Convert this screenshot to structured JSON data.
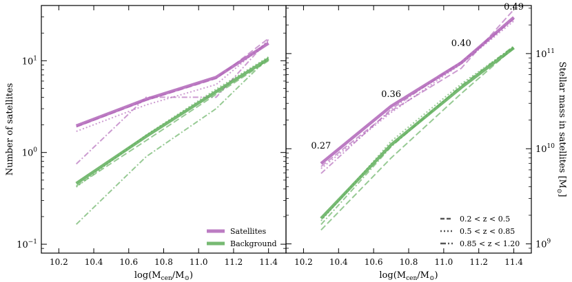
{
  "chart_data": [
    {
      "type": "line",
      "panel": "left",
      "xlabel": "log(M_cen/M_⊙)",
      "ylabel": "Number of satellites",
      "yscale": "log",
      "xlim": [
        10.1,
        11.5
      ],
      "ylim": [
        0.08,
        40
      ],
      "xticks": [
        10.2,
        10.4,
        10.6,
        10.8,
        11.0,
        11.2,
        11.4
      ],
      "yticks": [
        {
          "value": 0.1,
          "base": "10",
          "exp": "−1"
        },
        {
          "value": 1,
          "base": "10",
          "exp": "0"
        },
        {
          "value": 10,
          "base": "10",
          "exp": "1"
        }
      ],
      "legend": {
        "position": "lower-right",
        "entries": [
          {
            "label": "Satellites",
            "color": "#b065b8"
          },
          {
            "label": "Background",
            "color": "#5fae5a"
          }
        ]
      },
      "series": [
        {
          "name": "Satellites",
          "color": "#b065b8",
          "style": "solid",
          "x": [
            10.3,
            10.7,
            11.1,
            11.4
          ],
          "y": [
            1.95,
            3.8,
            6.6,
            15.5
          ]
        },
        {
          "name": "Satellites 0.2<z<0.5",
          "color": "#b065b8",
          "style": "dashed",
          "x": [
            10.3,
            10.7,
            11.1,
            11.4
          ],
          "y": [
            1.9,
            3.7,
            6.4,
            17.5
          ]
        },
        {
          "name": "Satellites 0.5<z<0.85",
          "color": "#b065b8",
          "style": "dotted",
          "x": [
            10.3,
            10.7,
            11.1,
            11.4
          ],
          "y": [
            1.7,
            3.3,
            5.5,
            16.5
          ]
        },
        {
          "name": "Satellites 0.85<z<1.20",
          "color": "#b065b8",
          "style": "dashdot",
          "x": [
            10.3,
            10.7,
            11.1,
            11.4
          ],
          "y": [
            0.75,
            4.0,
            4.0,
            17.0
          ]
        },
        {
          "name": "Background",
          "color": "#5fae5a",
          "style": "solid",
          "x": [
            10.3,
            10.7,
            11.1,
            11.4
          ],
          "y": [
            0.46,
            1.5,
            4.6,
            10.5
          ]
        },
        {
          "name": "Background 0.2<z<0.5",
          "color": "#5fae5a",
          "style": "dashed",
          "x": [
            10.3,
            10.7,
            11.1,
            11.4
          ],
          "y": [
            0.43,
            1.35,
            4.3,
            10.0
          ]
        },
        {
          "name": "Background 0.5<z<0.85",
          "color": "#5fae5a",
          "style": "dotted",
          "x": [
            10.3,
            10.7,
            11.1,
            11.4
          ],
          "y": [
            0.42,
            1.55,
            4.9,
            11.0
          ]
        },
        {
          "name": "Background 0.85<z<1.20",
          "color": "#5fae5a",
          "style": "dashdot",
          "x": [
            10.3,
            10.7,
            11.1,
            11.4
          ],
          "y": [
            0.165,
            0.9,
            3.0,
            10.8
          ]
        }
      ]
    },
    {
      "type": "line",
      "panel": "right",
      "xlabel": "log(M_cen/M_⊙)",
      "ylabel": "Stellar mass in satellites [M_⊙]",
      "yscale": "log",
      "ylabel_side": "right",
      "xlim": [
        10.1,
        11.5
      ],
      "ylim": [
        800000000,
        320000000000
      ],
      "xticks": [
        10.2,
        10.4,
        10.6,
        10.8,
        11.0,
        11.2,
        11.4
      ],
      "yticks": [
        {
          "value": 1000000000,
          "base": "10",
          "exp": "9"
        },
        {
          "value": 10000000000,
          "base": "10",
          "exp": "10"
        },
        {
          "value": 100000000000,
          "base": "10",
          "exp": "11"
        }
      ],
      "legend": {
        "position": "lower-right",
        "entries": [
          {
            "label": "0.2 < z < 0.5",
            "style": "dashed"
          },
          {
            "label": "0.5 < z < 0.85",
            "style": "dotted"
          },
          {
            "label": "0.85 < z < 1.20",
            "style": "dashdot"
          }
        ]
      },
      "annotations": [
        {
          "text": "0.27",
          "x": 10.3,
          "y": 10000000000
        },
        {
          "text": "0.36",
          "x": 10.7,
          "y": 35000000000
        },
        {
          "text": "0.40",
          "x": 11.1,
          "y": 120000000000
        },
        {
          "text": "0.49",
          "x": 11.4,
          "y": 290000000000
        }
      ],
      "series": [
        {
          "name": "Satellites",
          "color": "#b065b8",
          "style": "solid",
          "x": [
            10.3,
            10.7,
            11.1,
            11.4
          ],
          "y": [
            7000000000,
            28000000000,
            80000000000,
            240000000000
          ]
        },
        {
          "name": "Satellites 0.2<z<0.5",
          "color": "#b065b8",
          "style": "dashed",
          "x": [
            10.3,
            10.7,
            11.1,
            11.4
          ],
          "y": [
            6500000000,
            25000000000,
            70000000000,
            290000000000
          ]
        },
        {
          "name": "Satellites 0.5<z<0.85",
          "color": "#b065b8",
          "style": "dotted",
          "x": [
            10.3,
            10.7,
            11.1,
            11.4
          ],
          "y": [
            6200000000,
            24000000000,
            78000000000,
            220000000000
          ]
        },
        {
          "name": "Satellites 0.85<z<1.20",
          "color": "#b065b8",
          "style": "dashdot",
          "x": [
            10.3,
            10.7,
            11.1,
            11.4
          ],
          "y": [
            5500000000,
            26000000000,
            82000000000,
            230000000000
          ]
        },
        {
          "name": "Background",
          "color": "#5fae5a",
          "style": "solid",
          "x": [
            10.3,
            10.7,
            11.1,
            11.4
          ],
          "y": [
            1850000000,
            11000000000,
            44000000000,
            115000000000
          ]
        },
        {
          "name": "Background 0.2<z<0.5",
          "color": "#5fae5a",
          "style": "dashed",
          "x": [
            10.3,
            10.7,
            11.1,
            11.4
          ],
          "y": [
            1400000000,
            8000000000,
            38000000000,
            115000000000
          ]
        },
        {
          "name": "Background 0.5<z<0.85",
          "color": "#5fae5a",
          "style": "dotted",
          "x": [
            10.3,
            10.7,
            11.1,
            11.4
          ],
          "y": [
            1750000000,
            12000000000,
            48000000000,
            118000000000
          ]
        },
        {
          "name": "Background 0.85<z<1.20",
          "color": "#5fae5a",
          "style": "dashdot",
          "x": [
            10.3,
            10.7,
            11.1,
            11.4
          ],
          "y": [
            1600000000,
            10500000000,
            46000000000,
            120000000000
          ]
        }
      ]
    }
  ]
}
